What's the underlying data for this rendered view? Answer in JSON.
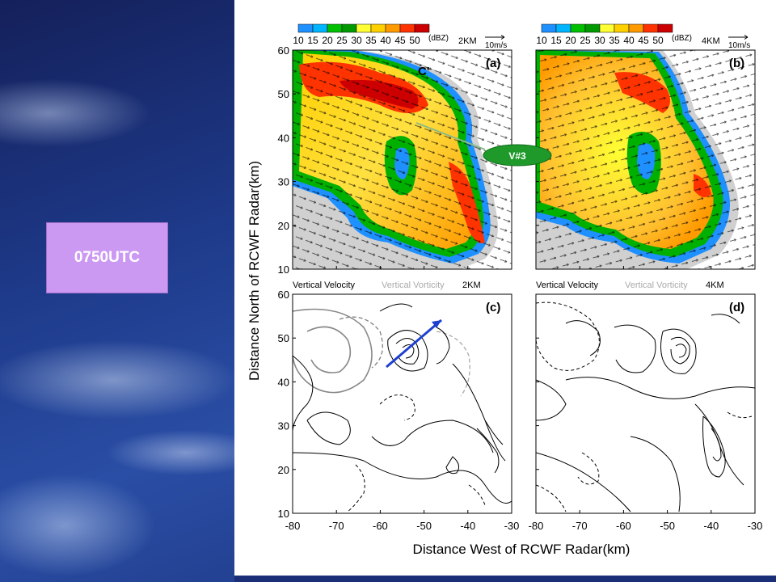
{
  "tag": {
    "label": "0750UTC"
  },
  "callout": {
    "label": "V#3"
  },
  "chart_data": {
    "type": "heatmap",
    "ylabel": "Distance North of RCWF Radar(km)",
    "xlabel": "Distance West of RCWF Radar(km)",
    "xlim": [
      -80,
      -30
    ],
    "ylim": [
      10,
      60
    ],
    "x_ticks": [
      -80,
      -70,
      -60,
      -50,
      -40,
      -30
    ],
    "y_ticks": [
      10,
      20,
      30,
      40,
      50,
      60
    ],
    "colorbar": {
      "levels": [
        10,
        15,
        20,
        25,
        30,
        35,
        40,
        45,
        50
      ],
      "colors": [
        "#1e90ff",
        "#00b4ff",
        "#00c000",
        "#009a00",
        "#ffff33",
        "#ffd000",
        "#ff9a00",
        "#ff3300",
        "#cc0000"
      ],
      "unit": "(dBZ)"
    },
    "panels": [
      {
        "id": "(a)",
        "colorbar_unit": "(dBZ)",
        "height_label": "2KM",
        "vector_scale": "10m/s",
        "section_label": "C'"
      },
      {
        "id": "(b)",
        "colorbar_unit": "(dBZ)",
        "height_label": "4KM",
        "vector_scale": "10m/s"
      },
      {
        "id": "(c)",
        "title_left": "Vertical Velocity",
        "title_right": "Vertical Vorticity",
        "height_label": "2KM"
      },
      {
        "id": "(d)",
        "title_left": "Vertical Velocity",
        "title_right": "Vertical Vorticity",
        "height_label": "4KM"
      }
    ]
  }
}
